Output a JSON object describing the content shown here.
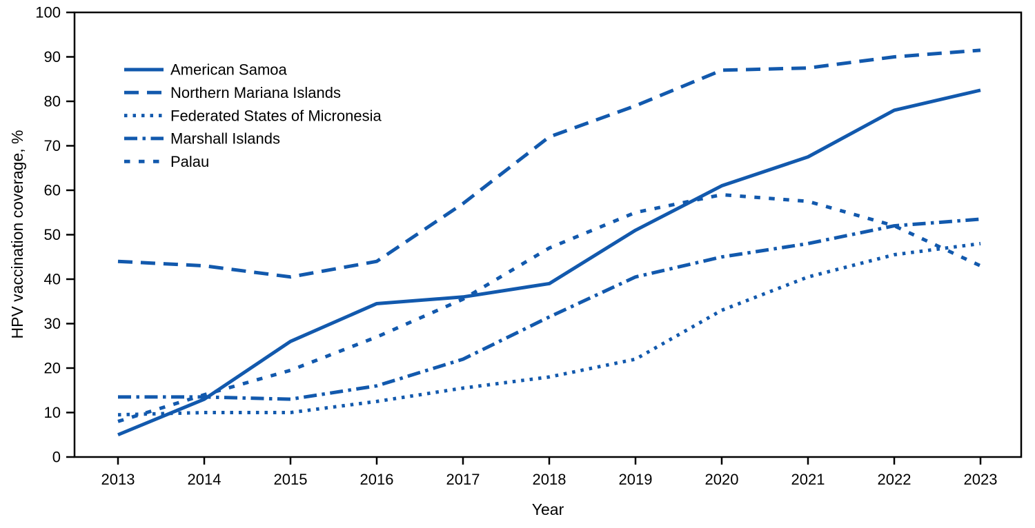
{
  "figure": {
    "y_axis_title": "HPV vaccination coverage, %",
    "x_axis_title": "Year"
  },
  "chart_data": {
    "type": "line",
    "title": "",
    "xlabel": "Year",
    "ylabel": "HPV vaccination coverage, %",
    "x": [
      2013,
      2014,
      2015,
      2016,
      2017,
      2018,
      2019,
      2020,
      2021,
      2022,
      2023
    ],
    "ylim": [
      0,
      100
    ],
    "y_ticks": [
      0,
      10,
      20,
      30,
      40,
      50,
      60,
      70,
      80,
      90,
      100
    ],
    "grid": false,
    "legend_position": "inside-upper-left",
    "line_color": "#1259ad",
    "axis_color": "#000000",
    "series": [
      {
        "name": "American Samoa",
        "dash": "solid",
        "values": [
          5,
          13,
          26,
          34.5,
          36,
          39,
          51,
          61,
          67.5,
          78,
          82.5
        ]
      },
      {
        "name": "Northern Mariana Islands",
        "dash": "long-dash",
        "values": [
          44,
          43,
          40.5,
          44,
          57,
          72,
          79,
          87,
          87.5,
          90,
          91.5
        ]
      },
      {
        "name": "Federated States of Micronesia",
        "dash": "dotted",
        "values": [
          9.5,
          10,
          10,
          12.5,
          15.5,
          18,
          22,
          33,
          40.5,
          45.5,
          48
        ]
      },
      {
        "name": "Marshall Islands",
        "dash": "dash-dot",
        "values": [
          13.5,
          13.5,
          13,
          16,
          22,
          31.5,
          40.5,
          45,
          48,
          52,
          53.5
        ]
      },
      {
        "name": "Palau",
        "dash": "medium-dash",
        "values": [
          8,
          14,
          19.5,
          27,
          35.5,
          47,
          55,
          59,
          57.5,
          52,
          43
        ]
      }
    ]
  }
}
